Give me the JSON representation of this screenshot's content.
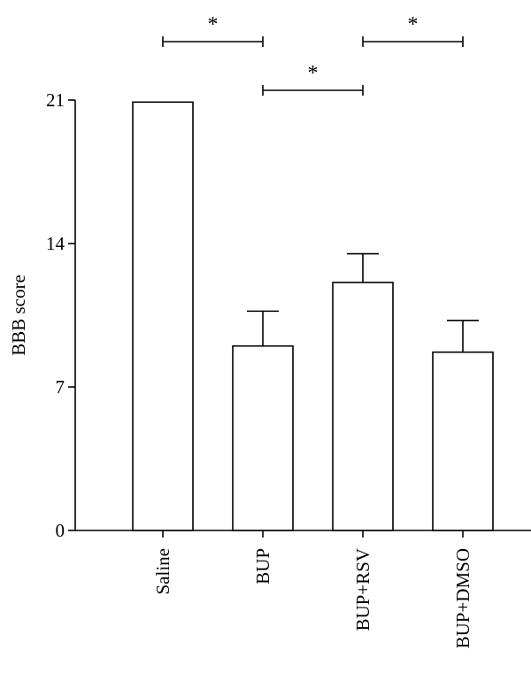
{
  "chart_data": {
    "type": "bar",
    "categories": [
      "Saline",
      "BUP",
      "BUP+RSV",
      "BUP+DMSO"
    ],
    "values": [
      20.9,
      9.0,
      12.1,
      8.7
    ],
    "errors": [
      0,
      1.7,
      1.4,
      1.55
    ],
    "ylabel": "BBB score",
    "xlabel": "",
    "title": "",
    "ylim": [
      0,
      21
    ],
    "yticks": [
      0,
      7,
      14,
      21
    ],
    "ytick_labels": [
      "0",
      "7",
      "14",
      "21"
    ],
    "grid": false,
    "significance": [
      {
        "from": 0,
        "to": 1,
        "label": "*",
        "level": 2
      },
      {
        "from": 1,
        "to": 2,
        "label": "*",
        "level": 1
      },
      {
        "from": 2,
        "to": 3,
        "label": "*",
        "level": 2
      }
    ]
  }
}
